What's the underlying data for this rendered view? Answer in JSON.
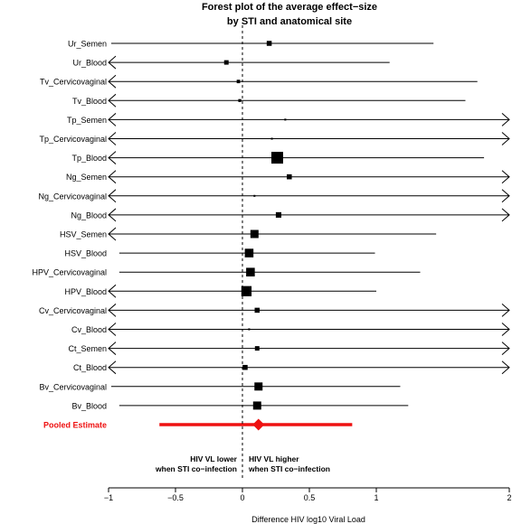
{
  "chart_data": {
    "type": "forest",
    "title_line1": "Forest plot of the average effect−size",
    "title_line2": "by STI and anatomical site",
    "xlabel": "Difference HIV log10 Viral Load",
    "xlim": [
      -1,
      2
    ],
    "x_ticks": [
      "−1",
      "−0.5",
      "0",
      "0.5",
      "1",
      "2"
    ],
    "x_tick_values": [
      -1,
      -0.5,
      0,
      0.5,
      1,
      2
    ],
    "annotation_left": [
      "HIV VL lower",
      "when STI co−infection"
    ],
    "annotation_right": [
      "HIV VL higher",
      "when STI co−infection"
    ],
    "reference_line": 0,
    "rows": [
      {
        "label": "Ur_Semen",
        "estimate": 0.2,
        "lower": -0.98,
        "upper": 1.43,
        "arrow_left": false,
        "arrow_right": false,
        "weight": 0.35
      },
      {
        "label": "Ur_Blood",
        "estimate": -0.12,
        "lower": -1.0,
        "upper": 1.1,
        "arrow_left": true,
        "arrow_right": false,
        "weight": 0.3
      },
      {
        "label": "Tv_Cervicovaginal",
        "estimate": -0.03,
        "lower": -1.0,
        "upper": 1.76,
        "arrow_left": true,
        "arrow_right": false,
        "weight": 0.2
      },
      {
        "label": "Tv_Blood",
        "estimate": -0.02,
        "lower": -1.0,
        "upper": 1.67,
        "arrow_left": true,
        "arrow_right": false,
        "weight": 0.15
      },
      {
        "label": "Tp_Semen",
        "estimate": 0.32,
        "lower": -1.0,
        "upper": 2.0,
        "arrow_left": true,
        "arrow_right": true,
        "weight": 0.05
      },
      {
        "label": "Tp_Cervicovaginal",
        "estimate": 0.22,
        "lower": -1.0,
        "upper": 2.0,
        "arrow_left": true,
        "arrow_right": true,
        "weight": 0.05
      },
      {
        "label": "Tp_Blood",
        "estimate": 0.26,
        "lower": -1.0,
        "upper": 1.81,
        "arrow_left": true,
        "arrow_right": false,
        "weight": 1.0
      },
      {
        "label": "Ng_Semen",
        "estimate": 0.35,
        "lower": -1.0,
        "upper": 2.0,
        "arrow_left": true,
        "arrow_right": true,
        "weight": 0.35
      },
      {
        "label": "Ng_Cervicovaginal",
        "estimate": 0.09,
        "lower": -1.0,
        "upper": 2.0,
        "arrow_left": true,
        "arrow_right": true,
        "weight": 0.05
      },
      {
        "label": "Ng_Blood",
        "estimate": 0.27,
        "lower": -1.0,
        "upper": 2.0,
        "arrow_left": true,
        "arrow_right": true,
        "weight": 0.4
      },
      {
        "label": "HSV_Semen",
        "estimate": 0.09,
        "lower": -1.0,
        "upper": 1.45,
        "arrow_left": true,
        "arrow_right": false,
        "weight": 0.65
      },
      {
        "label": "HSV_Blood",
        "estimate": 0.05,
        "lower": -0.92,
        "upper": 0.99,
        "arrow_left": false,
        "arrow_right": false,
        "weight": 0.7
      },
      {
        "label": "HPV_Cervicovaginal",
        "estimate": 0.06,
        "lower": -0.92,
        "upper": 1.33,
        "arrow_left": false,
        "arrow_right": false,
        "weight": 0.7
      },
      {
        "label": "HPV_Blood",
        "estimate": 0.03,
        "lower": -1.0,
        "upper": 1.0,
        "arrow_left": true,
        "arrow_right": false,
        "weight": 0.85
      },
      {
        "label": "Cv_Cervicovaginal",
        "estimate": 0.11,
        "lower": -1.0,
        "upper": 2.0,
        "arrow_left": true,
        "arrow_right": true,
        "weight": 0.35
      },
      {
        "label": "Cv_Blood",
        "estimate": 0.05,
        "lower": -1.0,
        "upper": 2.0,
        "arrow_left": true,
        "arrow_right": true,
        "weight": 0.05
      },
      {
        "label": "Ct_Semen",
        "estimate": 0.11,
        "lower": -1.0,
        "upper": 2.0,
        "arrow_left": true,
        "arrow_right": true,
        "weight": 0.3
      },
      {
        "label": "Ct_Blood",
        "estimate": 0.02,
        "lower": -1.0,
        "upper": 2.0,
        "arrow_left": true,
        "arrow_right": true,
        "weight": 0.35
      },
      {
        "label": "Bv_Cervicovaginal",
        "estimate": 0.12,
        "lower": -0.98,
        "upper": 1.18,
        "arrow_left": false,
        "arrow_right": false,
        "weight": 0.65
      },
      {
        "label": "Bv_Blood",
        "estimate": 0.11,
        "lower": -0.92,
        "upper": 1.24,
        "arrow_left": false,
        "arrow_right": false,
        "weight": 0.65
      }
    ],
    "pooled": {
      "label": "Pooled Estimate",
      "estimate": 0.12,
      "lower": -0.62,
      "upper": 0.82
    },
    "colors": {
      "pooled": "#ee1111",
      "marks": "#000000",
      "lines": "#000000"
    }
  }
}
